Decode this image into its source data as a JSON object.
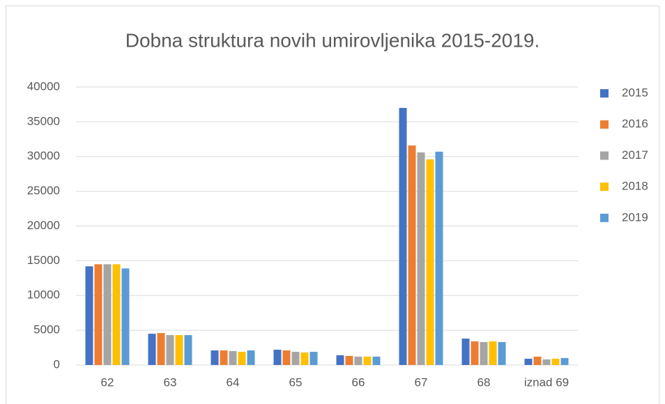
{
  "chart_data": {
    "type": "bar",
    "title": "Dobna struktura novih umirovljenika 2015-2019.",
    "categories": [
      "62",
      "63",
      "64",
      "65",
      "66",
      "67",
      "68",
      "iznad 69"
    ],
    "series": [
      {
        "name": "2015",
        "color": "#4472c4",
        "values": [
          14200,
          4500,
          2100,
          2200,
          1400,
          37000,
          3800,
          900
        ]
      },
      {
        "name": "2016",
        "color": "#ed7d31",
        "values": [
          14500,
          4600,
          2100,
          2100,
          1300,
          31600,
          3400,
          1200
        ]
      },
      {
        "name": "2017",
        "color": "#a5a5a5",
        "values": [
          14500,
          4300,
          2000,
          1900,
          1200,
          30600,
          3300,
          800
        ]
      },
      {
        "name": "2018",
        "color": "#ffc000",
        "values": [
          14500,
          4300,
          1900,
          1800,
          1200,
          29600,
          3400,
          900
        ]
      },
      {
        "name": "2019",
        "color": "#5b9bd5",
        "values": [
          13900,
          4300,
          2100,
          1900,
          1200,
          30700,
          3300,
          1000
        ]
      }
    ],
    "ylim": [
      0,
      40000
    ],
    "yticks": [
      0,
      5000,
      10000,
      15000,
      20000,
      25000,
      30000,
      35000,
      40000
    ],
    "grid": true,
    "legend": "right"
  }
}
